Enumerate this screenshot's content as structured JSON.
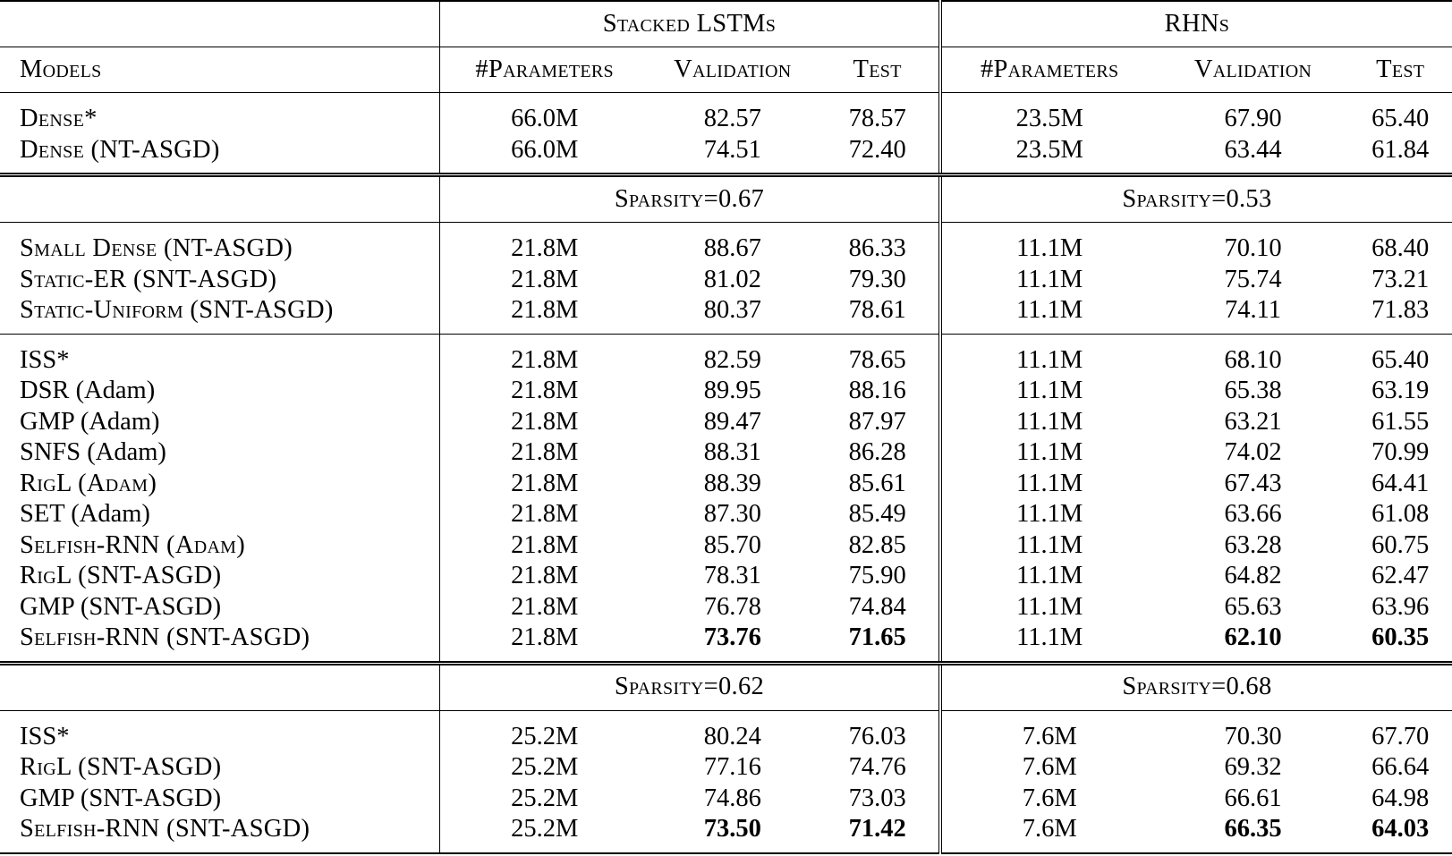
{
  "header": {
    "group_left": "Stacked LSTMs",
    "group_right": "RHNs",
    "col_models": "Models",
    "col_params": "#Parameters",
    "col_validation": "Validation",
    "col_test": "Test"
  },
  "sections": [
    {
      "sparsity_left": "",
      "sparsity_right": "",
      "groups": [
        [
          {
            "model": "Dense*",
            "lp": "66.0M",
            "lv": "82.57",
            "lt": "78.57",
            "rp": "23.5M",
            "rv": "67.90",
            "rt": "65.40"
          },
          {
            "model": "Dense (NT-ASGD)",
            "lp": "66.0M",
            "lv": "74.51",
            "lt": "72.40",
            "rp": "23.5M",
            "rv": "63.44",
            "rt": "61.84"
          }
        ]
      ]
    },
    {
      "sparsity_left": "Sparsity=0.67",
      "sparsity_right": "Sparsity=0.53",
      "groups": [
        [
          {
            "model": "Small Dense (NT-ASGD)",
            "lp": "21.8M",
            "lv": "88.67",
            "lt": "86.33",
            "rp": "11.1M",
            "rv": "70.10",
            "rt": "68.40"
          },
          {
            "model": "Static-ER (SNT-ASGD)",
            "lp": "21.8M",
            "lv": "81.02",
            "lt": "79.30",
            "rp": "11.1M",
            "rv": "75.74",
            "rt": "73.21"
          },
          {
            "model": "Static-Uniform (SNT-ASGD)",
            "lp": "21.8M",
            "lv": "80.37",
            "lt": "78.61",
            "rp": "11.1M",
            "rv": "74.11",
            "rt": "71.83"
          }
        ],
        [
          {
            "model": "ISS*",
            "lp": "21.8M",
            "lv": "82.59",
            "lt": "78.65",
            "rp": "11.1M",
            "rv": "68.10",
            "rt": "65.40"
          },
          {
            "model": "DSR (Adam)",
            "lp": "21.8M",
            "lv": "89.95",
            "lt": "88.16",
            "rp": "11.1M",
            "rv": "65.38",
            "rt": "63.19"
          },
          {
            "model": "GMP (Adam)",
            "lp": "21.8M",
            "lv": "89.47",
            "lt": "87.97",
            "rp": "11.1M",
            "rv": "63.21",
            "rt": "61.55"
          },
          {
            "model": "SNFS (Adam)",
            "lp": "21.8M",
            "lv": "88.31",
            "lt": "86.28",
            "rp": "11.1M",
            "rv": "74.02",
            "rt": "70.99"
          },
          {
            "model": "RigL (Adam)",
            "lp": "21.8M",
            "lv": "88.39",
            "lt": "85.61",
            "rp": "11.1M",
            "rv": "67.43",
            "rt": "64.41"
          },
          {
            "model": "SET (Adam)",
            "lp": "21.8M",
            "lv": "87.30",
            "lt": "85.49",
            "rp": "11.1M",
            "rv": "63.66",
            "rt": "61.08"
          },
          {
            "model": "Selfish-RNN (Adam)",
            "lp": "21.8M",
            "lv": "85.70",
            "lt": "82.85",
            "rp": "11.1M",
            "rv": "63.28",
            "rt": "60.75"
          },
          {
            "model": "RigL (SNT-ASGD)",
            "lp": "21.8M",
            "lv": "78.31",
            "lt": "75.90",
            "rp": "11.1M",
            "rv": "64.82",
            "rt": "62.47"
          },
          {
            "model": "GMP (SNT-ASGD)",
            "lp": "21.8M",
            "lv": "76.78",
            "lt": "74.84",
            "rp": "11.1M",
            "rv": "65.63",
            "rt": "63.96"
          },
          {
            "model": "Selfish-RNN (SNT-ASGD)",
            "lp": "21.8M",
            "lv": "73.76",
            "lt": "71.65",
            "rp": "11.1M",
            "rv": "62.10",
            "rt": "60.35",
            "bold": [
              "lv",
              "lt",
              "rv",
              "rt"
            ]
          }
        ]
      ]
    },
    {
      "sparsity_left": "Sparsity=0.62",
      "sparsity_right": "Sparsity=0.68",
      "groups": [
        [
          {
            "model": "ISS*",
            "lp": "25.2M",
            "lv": "80.24",
            "lt": "76.03",
            "rp": "7.6M",
            "rv": "70.30",
            "rt": "67.70"
          },
          {
            "model": "RigL (SNT-ASGD)",
            "lp": "25.2M",
            "lv": "77.16",
            "lt": "74.76",
            "rp": "7.6M",
            "rv": "69.32",
            "rt": "66.64"
          },
          {
            "model": "GMP (SNT-ASGD)",
            "lp": "25.2M",
            "lv": "74.86",
            "lt": "73.03",
            "rp": "7.6M",
            "rv": "66.61",
            "rt": "64.98"
          },
          {
            "model": "Selfish-RNN (SNT-ASGD)",
            "lp": "25.2M",
            "lv": "73.50",
            "lt": "71.42",
            "rp": "7.6M",
            "rv": "66.35",
            "rt": "64.03",
            "bold": [
              "lv",
              "lt",
              "rv",
              "rt"
            ]
          }
        ]
      ]
    }
  ]
}
